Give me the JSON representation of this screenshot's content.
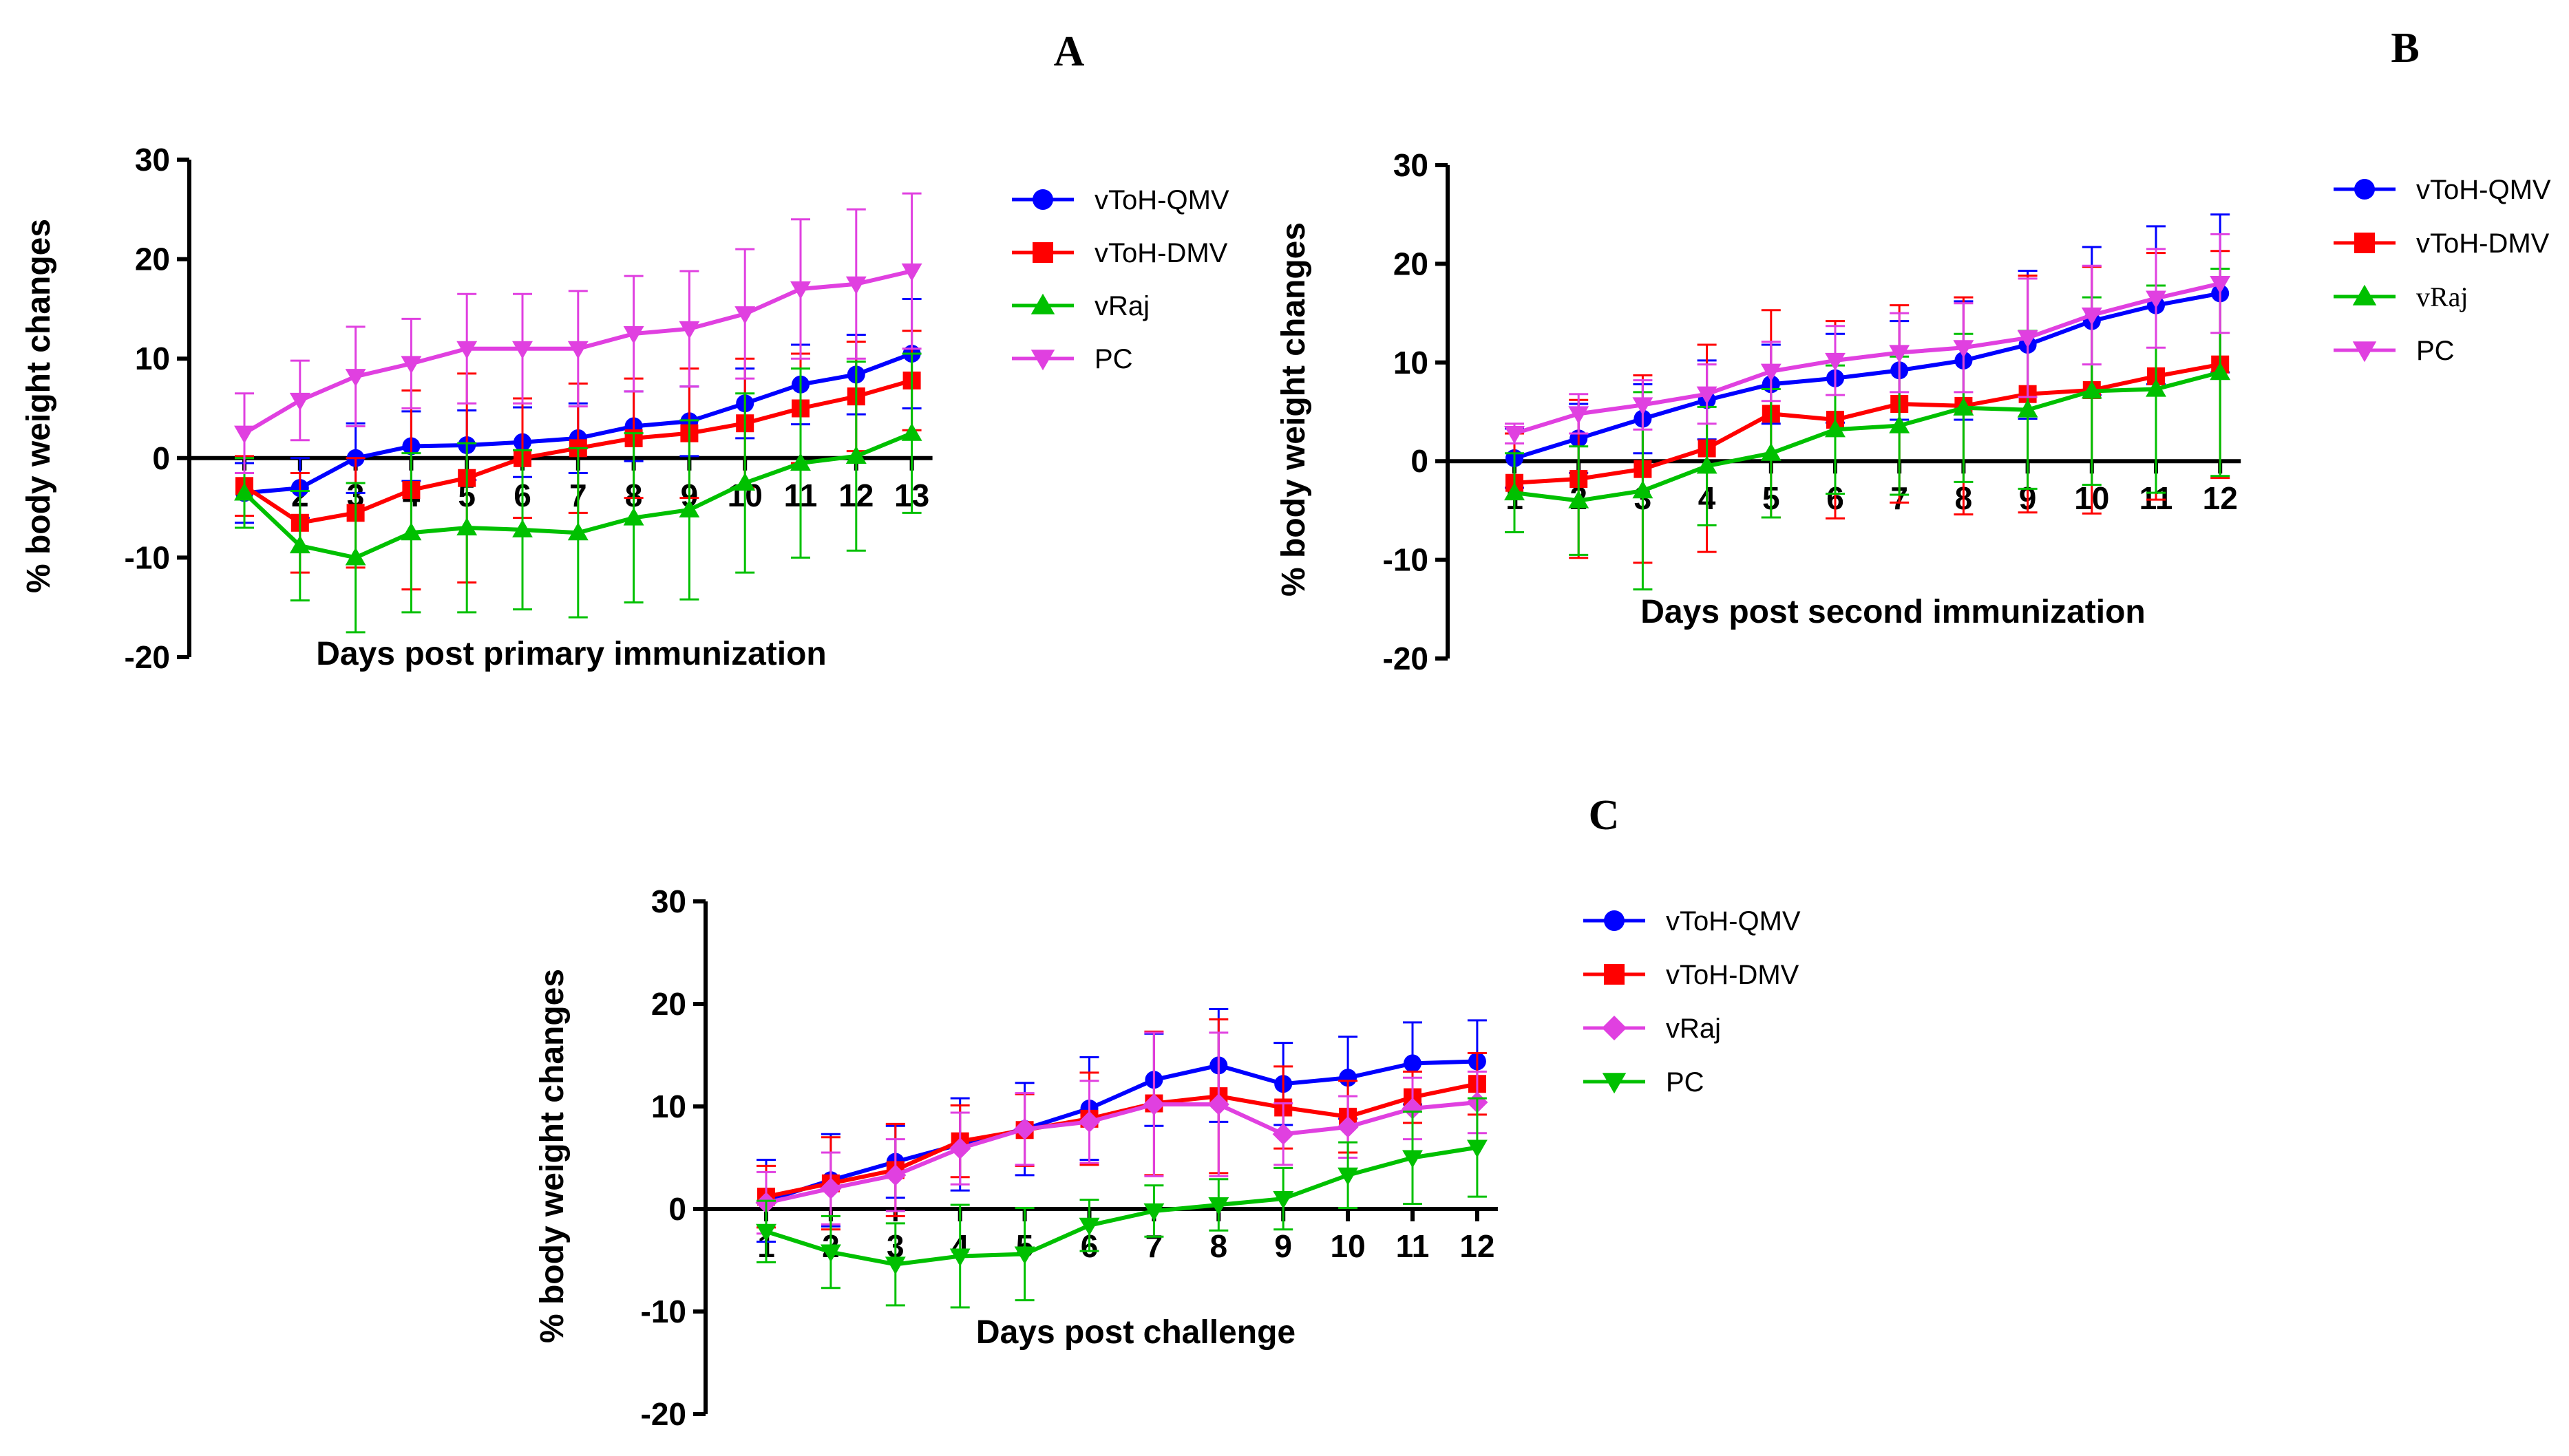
{
  "colors": {
    "blue": "#0000ff",
    "red": "#ff0000",
    "green": "#00c000",
    "magenta": "#e040e0"
  },
  "chart_data": [
    {
      "panel": "A",
      "type": "line",
      "ylabel": "% body weight changes",
      "xlabel": "Days post primary immunization",
      "ylim": [
        -20,
        30
      ],
      "yticks": [
        -20,
        -10,
        0,
        10,
        20,
        30
      ],
      "x": [
        1,
        2,
        3,
        4,
        5,
        6,
        7,
        8,
        9,
        10,
        11,
        12,
        13
      ],
      "x_tick_labels": [
        "2",
        "3",
        "4",
        "5",
        "6",
        "7",
        "8",
        "9",
        "10",
        "11",
        "12",
        "13"
      ],
      "legend": "right",
      "series": [
        {
          "name": "vToH-QMV",
          "color": "blue",
          "marker": "circle",
          "values": [
            -3.5,
            -3,
            0,
            1.2,
            1.3,
            1.6,
            2,
            3.2,
            3.7,
            5.5,
            7.4,
            8.4,
            10.5
          ],
          "errors": [
            3,
            3,
            3.5,
            3.5,
            3.5,
            3.5,
            3.5,
            3.5,
            3.5,
            3.5,
            4,
            4,
            5.5
          ]
        },
        {
          "name": "vToH-DMV",
          "color": "red",
          "marker": "square",
          "values": [
            -2.8,
            -6.5,
            -5.5,
            -3.2,
            -2,
            0,
            1,
            2,
            2.5,
            3.5,
            5,
            6.2,
            7.8
          ],
          "errors": [
            3,
            5,
            5.5,
            10,
            10.5,
            6,
            6.5,
            6,
            6.5,
            6.5,
            5.5,
            5.5,
            5
          ]
        },
        {
          "name": "vRaj",
          "color": "green",
          "marker": "triangle-up",
          "values": [
            -3.5,
            -8.8,
            -10,
            -7.5,
            -7,
            -7.2,
            -7.5,
            -6,
            -5.2,
            -2.5,
            -0.5,
            0.2,
            2.5
          ],
          "errors": [
            3.5,
            5.5,
            7.5,
            8,
            8.5,
            8,
            8.5,
            8.5,
            9,
            9,
            9.5,
            9.5,
            8
          ]
        },
        {
          "name": "PC",
          "color": "magenta",
          "marker": "triangle-down",
          "values": [
            2.5,
            5.8,
            8.2,
            9.5,
            11,
            11,
            11,
            12.5,
            13,
            14.5,
            17,
            17.5,
            18.8
          ],
          "errors": [
            4,
            4,
            5,
            4.5,
            5.5,
            5.5,
            5.8,
            5.8,
            5.8,
            6.5,
            7,
            7.5,
            7.8
          ]
        }
      ]
    },
    {
      "panel": "B",
      "type": "line",
      "ylabel": "% body weight changes",
      "xlabel": "Days post second immunization",
      "ylim": [
        -20,
        30
      ],
      "yticks": [
        -20,
        -10,
        0,
        10,
        20,
        30
      ],
      "x": [
        1,
        2,
        3,
        4,
        5,
        6,
        7,
        8,
        9,
        10,
        11,
        12
      ],
      "x_tick_labels": [
        "1",
        "2",
        "3",
        "4",
        "5",
        "6",
        "7",
        "8",
        "9",
        "10",
        "11",
        "12"
      ],
      "legend": "right",
      "series": [
        {
          "name": "vToH-QMV",
          "color": "blue",
          "marker": "circle",
          "values": [
            0.3,
            2.3,
            4.3,
            6.2,
            7.8,
            8.4,
            9.2,
            10.2,
            11.8,
            14.2,
            15.8,
            17
          ],
          "errors": [
            3,
            3.5,
            3.5,
            4,
            4,
            4.5,
            5,
            6,
            7.5,
            7.5,
            8,
            8
          ]
        },
        {
          "name": "vToH-DMV",
          "color": "red",
          "marker": "square",
          "values": [
            -2.2,
            -1.8,
            -0.8,
            1.3,
            4.8,
            4.2,
            5.8,
            5.6,
            6.8,
            7.2,
            8.6,
            9.8
          ],
          "errors": [
            5,
            8,
            9.5,
            10.5,
            10.5,
            10,
            10,
            11,
            12,
            12.5,
            12.5,
            11.5
          ]
        },
        {
          "name": "vRaj",
          "color": "green",
          "marker": "triangle-up",
          "values": [
            -3.2,
            -4,
            -3,
            -0.5,
            0.8,
            3.2,
            3.6,
            5.4,
            5.2,
            7.1,
            7.3,
            9
          ],
          "errors": [
            4,
            5.5,
            10,
            6,
            6.5,
            6.5,
            7,
            7.5,
            8,
            9.5,
            10.5,
            10.5
          ]
        },
        {
          "name": "PC",
          "color": "magenta",
          "marker": "triangle-down",
          "values": [
            2.8,
            4.8,
            5.7,
            6.8,
            9.1,
            10.2,
            11,
            11.5,
            12.5,
            14.8,
            16.5,
            18
          ],
          "errors": [
            1,
            2,
            2.5,
            3,
            3,
            3.5,
            4,
            4.5,
            6,
            5,
            5,
            5
          ]
        }
      ]
    },
    {
      "panel": "C",
      "type": "line",
      "ylabel": "% body weight changes",
      "xlabel": "Days post challenge",
      "ylim": [
        -20,
        30
      ],
      "yticks": [
        -20,
        -10,
        0,
        10,
        20,
        30
      ],
      "x": [
        1,
        2,
        3,
        4,
        5,
        6,
        7,
        8,
        9,
        10,
        11,
        12
      ],
      "x_tick_labels": [
        "1",
        "2",
        "3",
        "4",
        "5",
        "6",
        "7",
        "8",
        "9",
        "10",
        "11",
        "12"
      ],
      "legend": "right",
      "series": [
        {
          "name": "vToH-QMV",
          "color": "blue",
          "marker": "circle",
          "values": [
            0.8,
            2.8,
            4.6,
            6.3,
            7.8,
            9.8,
            12.6,
            14,
            12.2,
            12.8,
            14.2,
            14.4
          ],
          "errors": [
            4,
            4.5,
            3.5,
            4.5,
            4.5,
            5,
            4.5,
            5.5,
            4,
            4,
            4,
            4
          ]
        },
        {
          "name": "vToH-DMV",
          "color": "red",
          "marker": "square",
          "values": [
            1.2,
            2.5,
            3.8,
            6.6,
            7.7,
            8.8,
            10.3,
            11,
            9.9,
            9,
            10.9,
            12.2
          ],
          "errors": [
            3,
            4.5,
            4.5,
            3.5,
            3.5,
            4.5,
            7,
            7.5,
            4,
            3.5,
            2.5,
            3
          ]
        },
        {
          "name": "vRaj",
          "color": "magenta",
          "marker": "diamond",
          "values": [
            0.6,
            2,
            3.3,
            5.9,
            7.8,
            8.5,
            10.2,
            10.2,
            7.3,
            8,
            9.8,
            10.4
          ],
          "errors": [
            3,
            3.5,
            3.5,
            3.5,
            3.5,
            4,
            7,
            7,
            3,
            3,
            3,
            3
          ]
        },
        {
          "name": "PC",
          "color": "green",
          "marker": "triangle-down",
          "values": [
            -2.2,
            -4.2,
            -5.4,
            -4.6,
            -4.4,
            -1.6,
            -0.2,
            0.4,
            1,
            3.3,
            5,
            6
          ],
          "errors": [
            3,
            3.5,
            4,
            5,
            4.5,
            2.5,
            2.5,
            2.5,
            3,
            3.2,
            4.5,
            4.8
          ]
        }
      ]
    }
  ]
}
